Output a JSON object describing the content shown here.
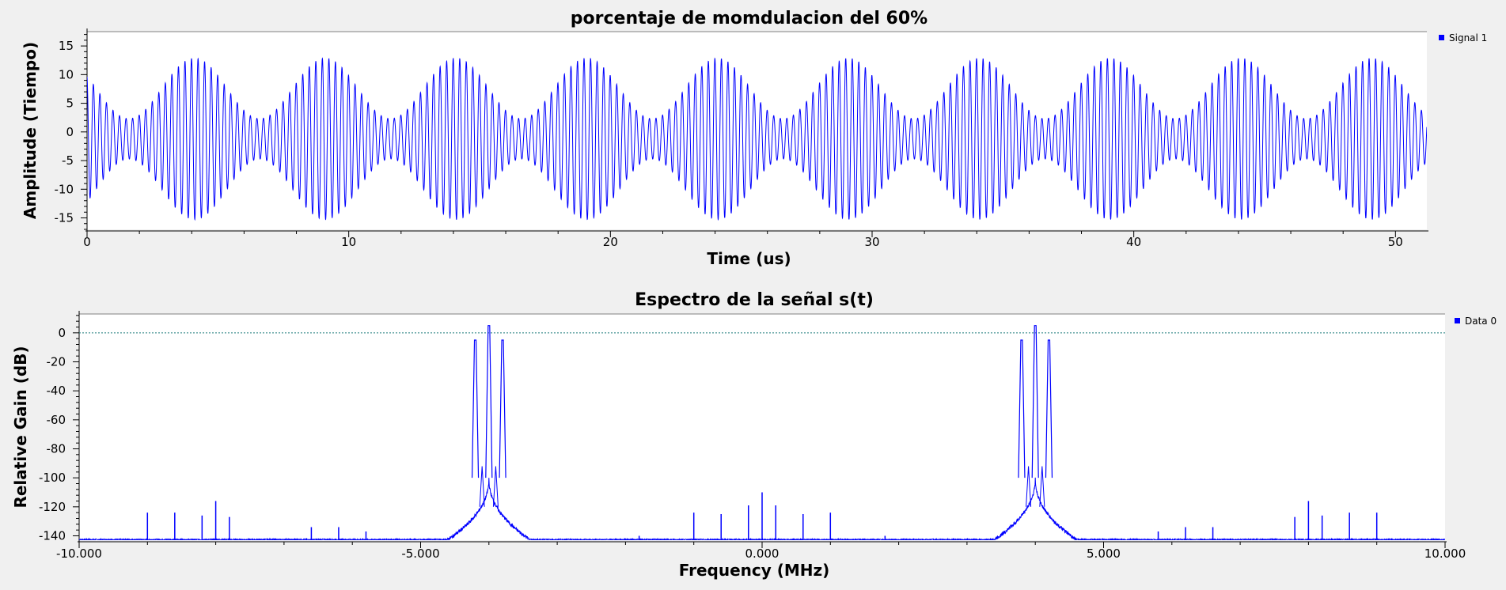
{
  "chart_data": [
    {
      "type": "line",
      "title": "porcentaje de momdulacion del 60%",
      "xlabel": "Time (us)",
      "ylabel": "Amplitude (Tiempo)",
      "xlim": [
        0,
        51.2
      ],
      "ylim": [
        -17,
        17.5
      ],
      "xticks": [
        0,
        10,
        20,
        30,
        40,
        50
      ],
      "xtick_labels": [
        "0",
        "10",
        "20",
        "30",
        "40",
        "50"
      ],
      "yticks": [
        15,
        10,
        5,
        0,
        -5,
        -10,
        -15
      ],
      "ytick_labels": [
        "15",
        "10",
        "5",
        "0",
        "-5",
        "-10",
        "-15"
      ],
      "grid": false,
      "legend": "top-right",
      "series": [
        {
          "name": "Signal 1",
          "color": "#0000ff",
          "model": "am_tone",
          "carrier_amplitude": 8.8,
          "modulation_index": 0.6,
          "carrier_frequency_mhz": 4.0,
          "message_frequency_mhz": 0.2,
          "envelope_peak_time_us": 4.1
        }
      ]
    },
    {
      "type": "line",
      "title": "Espectro de la señal s(t)",
      "xlabel": "Frequency (MHz)",
      "ylabel": "Relative Gain (dB)",
      "xlim": [
        -10,
        10
      ],
      "ylim": [
        -143,
        13
      ],
      "xticks": [
        -10,
        -5,
        0,
        5,
        10
      ],
      "xtick_labels": [
        "-10.000",
        "-5.000",
        "0.000",
        "5.000",
        "10.000"
      ],
      "yticks": [
        0,
        -20,
        -40,
        -60,
        -80,
        -100,
        -120,
        -140
      ],
      "ytick_labels": [
        "0",
        "-20",
        "-40",
        "-60",
        "-80",
        "-100",
        "-120",
        "-140"
      ],
      "reference_line_db": 0,
      "grid": false,
      "legend": "top-right",
      "series": [
        {
          "name": "Data 0",
          "color": "#0000ff",
          "noise_floor_db": -143,
          "peaks": [
            {
              "x": -4.2,
              "y": -5
            },
            {
              "x": -4.0,
              "y": 5
            },
            {
              "x": -3.8,
              "y": -5
            },
            {
              "x": 3.8,
              "y": -5
            },
            {
              "x": 4.0,
              "y": 5
            },
            {
              "x": 4.2,
              "y": -5
            }
          ],
          "spurs": [
            {
              "x": -9.0,
              "y": -124
            },
            {
              "x": -8.6,
              "y": -124
            },
            {
              "x": -8.2,
              "y": -126
            },
            {
              "x": -8.0,
              "y": -116
            },
            {
              "x": -7.8,
              "y": -127
            },
            {
              "x": -6.6,
              "y": -134
            },
            {
              "x": -6.2,
              "y": -134
            },
            {
              "x": -5.8,
              "y": -137
            },
            {
              "x": -1.8,
              "y": -140
            },
            {
              "x": -1.0,
              "y": -124
            },
            {
              "x": -0.6,
              "y": -125
            },
            {
              "x": -0.2,
              "y": -119
            },
            {
              "x": 0.0,
              "y": -110
            },
            {
              "x": 0.2,
              "y": -119
            },
            {
              "x": 0.6,
              "y": -125
            },
            {
              "x": 1.0,
              "y": -124
            },
            {
              "x": 1.8,
              "y": -140
            },
            {
              "x": 5.8,
              "y": -137
            },
            {
              "x": 6.2,
              "y": -134
            },
            {
              "x": 6.6,
              "y": -134
            },
            {
              "x": 7.8,
              "y": -127
            },
            {
              "x": 8.0,
              "y": -116
            },
            {
              "x": 8.2,
              "y": -126
            },
            {
              "x": 8.6,
              "y": -124
            },
            {
              "x": 9.0,
              "y": -124
            }
          ]
        }
      ]
    }
  ]
}
